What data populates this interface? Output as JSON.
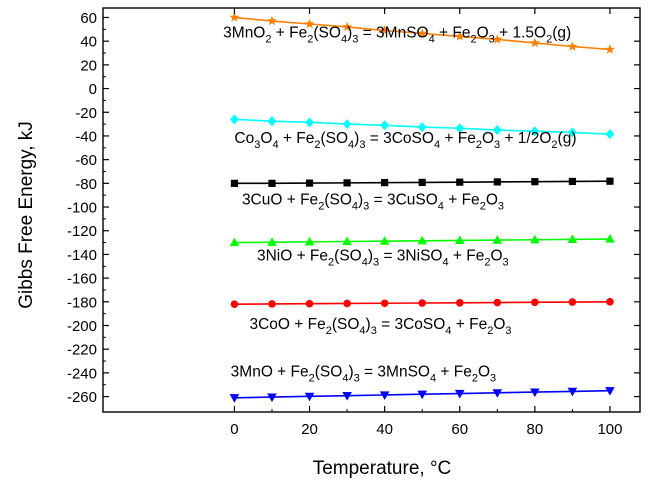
{
  "chart_data": {
    "type": "line",
    "title": "",
    "xlabel": "Temperature, °C",
    "ylabel": "Gibbs Free Energy, kJ",
    "xlim": [
      -35,
      108
    ],
    "ylim": [
      -273,
      68
    ],
    "xticks": [
      0,
      20,
      40,
      60,
      80,
      100
    ],
    "xtick_labels": [
      "0",
      "20",
      "40",
      "60",
      "80",
      "100"
    ],
    "yticks": [
      60,
      40,
      20,
      0,
      -20,
      -40,
      -60,
      -80,
      -100,
      -120,
      -140,
      -160,
      -180,
      -200,
      -220,
      -240,
      -260
    ],
    "ytick_labels": [
      "60",
      "40",
      "20",
      "0",
      "-20",
      "-40",
      "-60",
      "-80",
      "-100",
      "-120",
      "-140",
      "-160",
      "-180",
      "-200",
      "-220",
      "-240",
      "-260"
    ],
    "x": [
      0,
      10,
      20,
      30,
      40,
      50,
      60,
      70,
      80,
      90,
      100
    ],
    "series": [
      {
        "name": "3MnO2 + Fe2(SO4)3 = 3MnSO4 + Fe2O3 + 1.5O2(g)",
        "color": "#ff8000",
        "marker": "star",
        "values": [
          60,
          57,
          54.5,
          52,
          49,
          46.5,
          44,
          41.5,
          38.5,
          35.5,
          33
        ]
      },
      {
        "name": "Co3O4 + Fe2(SO4)3 = 3CoSO4 + Fe2O3 + 1/2O2(g)",
        "color": "#00ffff",
        "marker": "diamond",
        "values": [
          -26,
          -27.5,
          -28.5,
          -30,
          -31,
          -32.5,
          -33.5,
          -35,
          -36,
          -37,
          -38.5
        ]
      },
      {
        "name": "3CuO + Fe2(SO4)3 = 3CuSO4 + Fe2O3",
        "color": "#000000",
        "marker": "square",
        "values": [
          -80,
          -80,
          -79.8,
          -79.6,
          -79.4,
          -79.2,
          -79,
          -78.8,
          -78.6,
          -78.4,
          -78.2
        ]
      },
      {
        "name": "3NiO + Fe2(SO4)3 = 3NiSO4 + Fe2O3",
        "color": "#00ff00",
        "marker": "triangle-up",
        "values": [
          -130,
          -129.7,
          -129.4,
          -129.1,
          -128.8,
          -128.5,
          -128.2,
          -127.9,
          -127.6,
          -127.3,
          -127
        ]
      },
      {
        "name": "3CoO + Fe2(SO4)3 = 3CoSO4 + Fe2O3",
        "color": "#ff0000",
        "marker": "circle",
        "values": [
          -182,
          -181.8,
          -181.6,
          -181.4,
          -181.2,
          -181,
          -180.8,
          -180.6,
          -180.4,
          -180.2,
          -180
        ]
      },
      {
        "name": "3MnO + Fe2(SO4)3 = 3MnSO4 + Fe2O3",
        "color": "#0000ff",
        "marker": "triangle-down",
        "values": [
          -261,
          -260.4,
          -259.8,
          -259.2,
          -258.6,
          -258,
          -257.4,
          -256.8,
          -256.2,
          -255.6,
          -255
        ]
      }
    ],
    "annotations": [
      {
        "id": "mno2",
        "anchor": [
          -3,
          43
        ],
        "parts": [
          [
            "3MnO",
            0
          ],
          [
            "2",
            1
          ],
          [
            " + Fe",
            0
          ],
          [
            "2",
            1
          ],
          [
            "(SO",
            0
          ],
          [
            "4",
            1
          ],
          [
            ")",
            0
          ],
          [
            "3",
            1
          ],
          [
            " = 3MnSO",
            0
          ],
          [
            "4",
            1
          ],
          [
            " + Fe",
            0
          ],
          [
            "2",
            1
          ],
          [
            "O",
            0
          ],
          [
            "3",
            1
          ],
          [
            " + 1.5O",
            0
          ],
          [
            "2",
            1
          ],
          [
            "(g)",
            0
          ]
        ]
      },
      {
        "id": "co3o4",
        "anchor": [
          0,
          -46
        ],
        "parts": [
          [
            "Co",
            0
          ],
          [
            "3",
            1
          ],
          [
            "O",
            0
          ],
          [
            "4",
            1
          ],
          [
            " + Fe",
            0
          ],
          [
            "2",
            1
          ],
          [
            "(SO",
            0
          ],
          [
            "4",
            1
          ],
          [
            ")",
            0
          ],
          [
            "3",
            1
          ],
          [
            " = 3CoSO",
            0
          ],
          [
            "4",
            1
          ],
          [
            " + Fe",
            0
          ],
          [
            "2",
            1
          ],
          [
            "O",
            0
          ],
          [
            "3",
            1
          ],
          [
            " + 1/2O",
            0
          ],
          [
            "2",
            1
          ],
          [
            "(g)",
            0
          ]
        ]
      },
      {
        "id": "cuo",
        "anchor": [
          2,
          -98
        ],
        "parts": [
          [
            "3CuO + Fe",
            0
          ],
          [
            "2",
            1
          ],
          [
            "(SO",
            0
          ],
          [
            "4",
            1
          ],
          [
            ")",
            0
          ],
          [
            "3",
            1
          ],
          [
            " = 3CuSO",
            0
          ],
          [
            "4",
            1
          ],
          [
            " + Fe",
            0
          ],
          [
            "2",
            1
          ],
          [
            "O",
            0
          ],
          [
            "3",
            1
          ]
        ]
      },
      {
        "id": "nio",
        "anchor": [
          6,
          -145
        ],
        "parts": [
          [
            "3NiO + Fe",
            0
          ],
          [
            "2",
            1
          ],
          [
            "(SO",
            0
          ],
          [
            "4",
            1
          ],
          [
            ")",
            0
          ],
          [
            "3",
            1
          ],
          [
            " = 3NiSO",
            0
          ],
          [
            "4",
            1
          ],
          [
            " + Fe",
            0
          ],
          [
            "2",
            1
          ],
          [
            "O",
            0
          ],
          [
            "3",
            1
          ]
        ]
      },
      {
        "id": "coo",
        "anchor": [
          4,
          -203
        ],
        "parts": [
          [
            "3CoO + Fe",
            0
          ],
          [
            "2",
            1
          ],
          [
            "(SO",
            0
          ],
          [
            "4",
            1
          ],
          [
            ")",
            0
          ],
          [
            "3",
            1
          ],
          [
            " = 3CoSO",
            0
          ],
          [
            "4",
            1
          ],
          [
            " + Fe",
            0
          ],
          [
            "2",
            1
          ],
          [
            "O",
            0
          ],
          [
            "3",
            1
          ]
        ]
      },
      {
        "id": "mno",
        "anchor": [
          -1,
          -243
        ],
        "parts": [
          [
            "3MnO + Fe",
            0
          ],
          [
            "2",
            1
          ],
          [
            "(SO",
            0
          ],
          [
            "4",
            1
          ],
          [
            ")",
            0
          ],
          [
            "3",
            1
          ],
          [
            " = 3MnSO",
            0
          ],
          [
            "4",
            1
          ],
          [
            " + Fe",
            0
          ],
          [
            "2",
            1
          ],
          [
            "O",
            0
          ],
          [
            "3",
            1
          ]
        ]
      }
    ]
  }
}
